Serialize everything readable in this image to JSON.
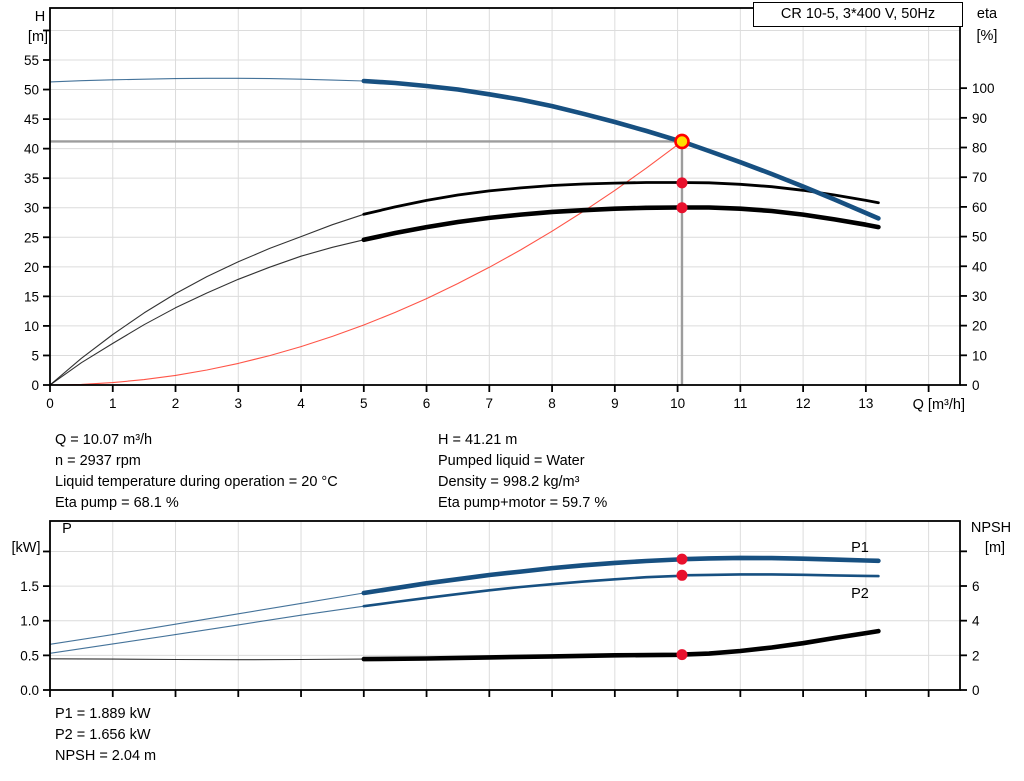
{
  "title_box": "CR 10-5, 3*400 V, 50Hz",
  "colors": {
    "curve_blue": "#175081",
    "curve_black": "#000000",
    "system_red": "#ff2a1a",
    "dot_red": "#e8112d",
    "marker_yellow": "#ffe000",
    "marker_ring": "#ff0000",
    "grid": "#dcdcdc",
    "op_line_gray": "#9d9d9d",
    "frame": "#000000",
    "label_blue": "#1d5ba6"
  },
  "info_top_left": [
    "Q = 10.07 m³/h",
    "n = 2937 rpm",
    "Liquid temperature during operation = 20 °C",
    "Eta pump = 68.1 %"
  ],
  "info_top_right": [
    "H = 41.21 m",
    "Pumped liquid = Water",
    "Density = 998.2 kg/m³",
    "Eta pump+motor = 59.7 %"
  ],
  "info_bottom": [
    "P1 = 1.889 kW",
    "P2 = 1.656 kW",
    "NPSH = 2.04 m"
  ],
  "chart_data": [
    {
      "id": "hq_eta",
      "type": "line",
      "title": "CR 10-5, 3*400 V, 50Hz",
      "x_axis": {
        "label": "Q [m³/h]",
        "range": [
          0,
          14.5
        ],
        "tick_values": [
          0,
          1,
          2,
          3,
          4,
          5,
          6,
          7,
          8,
          9,
          10,
          11,
          12,
          13,
          14
        ],
        "tick_labels": [
          "0",
          "1",
          "2",
          "3",
          "4",
          "5",
          "6",
          "7",
          "8",
          "9",
          "10",
          "11",
          "12",
          "13",
          ""
        ],
        "grid_values": [
          1,
          2,
          3,
          4,
          5,
          6,
          7,
          8,
          9,
          10,
          11,
          12,
          13,
          14
        ],
        "show_tick_labels": true
      },
      "y_left": {
        "label_lines": [
          "H",
          "[m]"
        ],
        "range": [
          0,
          63.8
        ],
        "tick_values": [
          0,
          5,
          10,
          15,
          20,
          25,
          30,
          35,
          40,
          45,
          50,
          55,
          60
        ],
        "tick_labels": [
          "0",
          "5",
          "10",
          "15",
          "20",
          "25",
          "30",
          "35",
          "40",
          "45",
          "50",
          "55",
          ""
        ],
        "grid_values": [
          5,
          10,
          15,
          20,
          25,
          30,
          35,
          40,
          45,
          50,
          55,
          60
        ]
      },
      "y_right": {
        "label_lines": [
          "eta",
          "[%]"
        ],
        "range": [
          0,
          127
        ],
        "tick_values": [
          0,
          10,
          20,
          30,
          40,
          50,
          60,
          70,
          80,
          90,
          100
        ],
        "tick_labels": [
          "0",
          "10",
          "20",
          "30",
          "40",
          "50",
          "60",
          "70",
          "80",
          "90",
          "100"
        ]
      },
      "series": [
        {
          "name": "system-curve",
          "axis": "left",
          "color_key": "system_red",
          "thin_width": 1.1,
          "thick_width": 1.1,
          "thick_from": null,
          "points": [
            [
              0,
              0
            ],
            [
              0.5,
              0.1
            ],
            [
              1,
              0.41
            ],
            [
              1.5,
              0.91
            ],
            [
              2,
              1.63
            ],
            [
              2.5,
              2.54
            ],
            [
              3,
              3.66
            ],
            [
              3.5,
              4.98
            ],
            [
              4,
              6.5
            ],
            [
              4.5,
              8.23
            ],
            [
              5,
              10.16
            ],
            [
              5.5,
              12.29
            ],
            [
              6,
              14.63
            ],
            [
              6.5,
              17.17
            ],
            [
              7,
              19.92
            ],
            [
              7.5,
              22.86
            ],
            [
              8,
              26.02
            ],
            [
              8.5,
              29.37
            ],
            [
              9,
              32.93
            ],
            [
              9.5,
              36.69
            ],
            [
              10,
              40.65
            ],
            [
              10.07,
              41.21
            ]
          ]
        },
        {
          "name": "eta-pump-curve",
          "axis": "right",
          "color_key": "curve_black",
          "thin_width": 1.1,
          "thick_width": 2.8,
          "thick_from": 5,
          "points": [
            [
              0,
              0
            ],
            [
              0.5,
              9
            ],
            [
              1,
              17
            ],
            [
              1.5,
              24.3
            ],
            [
              2,
              30.8
            ],
            [
              2.5,
              36.5
            ],
            [
              3,
              41.5
            ],
            [
              3.5,
              46
            ],
            [
              4,
              50
            ],
            [
              4.5,
              54
            ],
            [
              5,
              57.5
            ],
            [
              5.5,
              60
            ],
            [
              6,
              62.2
            ],
            [
              6.5,
              64
            ],
            [
              7,
              65.4
            ],
            [
              7.5,
              66.4
            ],
            [
              8,
              67.2
            ],
            [
              8.5,
              67.7
            ],
            [
              9,
              68.0
            ],
            [
              9.5,
              68.2
            ],
            [
              10,
              68.2
            ],
            [
              10.5,
              68.1
            ],
            [
              11,
              67.6
            ],
            [
              11.5,
              66.8
            ],
            [
              12,
              65.6
            ],
            [
              12.5,
              64.0
            ],
            [
              13,
              62.2
            ],
            [
              13.2,
              61.4
            ]
          ]
        },
        {
          "name": "eta-pump-motor-curve",
          "axis": "right",
          "color_key": "curve_black",
          "thin_width": 1.1,
          "thick_width": 4.6,
          "thick_from": 5,
          "points": [
            [
              0,
              0
            ],
            [
              0.5,
              7.5
            ],
            [
              1,
              14
            ],
            [
              1.5,
              20.3
            ],
            [
              2,
              26
            ],
            [
              2.5,
              31
            ],
            [
              3,
              35.6
            ],
            [
              3.5,
              39.7
            ],
            [
              4,
              43.4
            ],
            [
              4.5,
              46.4
            ],
            [
              5,
              48.9
            ],
            [
              5.5,
              51.2
            ],
            [
              6,
              53.2
            ],
            [
              6.5,
              54.9
            ],
            [
              7,
              56.3
            ],
            [
              7.5,
              57.4
            ],
            [
              8,
              58.3
            ],
            [
              8.5,
              58.9
            ],
            [
              9,
              59.4
            ],
            [
              9.5,
              59.7
            ],
            [
              10,
              59.8
            ],
            [
              10.5,
              59.8
            ],
            [
              11,
              59.4
            ],
            [
              11.5,
              58.6
            ],
            [
              12,
              57.4
            ],
            [
              12.5,
              55.8
            ],
            [
              13,
              54.0
            ],
            [
              13.2,
              53.2
            ]
          ]
        },
        {
          "name": "pump-curve-h",
          "axis": "left",
          "color_key": "curve_blue",
          "thin_width": 1.1,
          "thick_width": 4.6,
          "thick_from": 5,
          "points": [
            [
              0,
              51.3
            ],
            [
              0.5,
              51.5
            ],
            [
              1,
              51.65
            ],
            [
              1.5,
              51.75
            ],
            [
              2,
              51.85
            ],
            [
              2.5,
              51.9
            ],
            [
              3,
              51.9
            ],
            [
              3.5,
              51.85
            ],
            [
              4,
              51.75
            ],
            [
              4.5,
              51.6
            ],
            [
              5,
              51.45
            ],
            [
              5.5,
              51.1
            ],
            [
              6,
              50.6
            ],
            [
              6.5,
              50.0
            ],
            [
              7,
              49.2
            ],
            [
              7.5,
              48.3
            ],
            [
              8,
              47.2
            ],
            [
              8.5,
              45.9
            ],
            [
              9,
              44.5
            ],
            [
              9.5,
              43.0
            ],
            [
              10,
              41.4
            ],
            [
              10.07,
              41.21
            ],
            [
              10.5,
              39.6
            ],
            [
              11,
              37.7
            ],
            [
              11.5,
              35.7
            ],
            [
              12,
              33.6
            ],
            [
              12.5,
              31.4
            ],
            [
              13,
              29.1
            ],
            [
              13.2,
              28.2
            ]
          ]
        }
      ],
      "operating_point": {
        "q": 10.07,
        "h": 41.21
      },
      "operating_dots": [
        {
          "q": 10.07,
          "value": 68.1,
          "axis": "right"
        },
        {
          "q": 10.07,
          "value": 59.7,
          "axis": "right"
        }
      ],
      "series_labels": []
    },
    {
      "id": "power_npsh",
      "type": "line",
      "title": "",
      "x_axis": {
        "label": "",
        "range": [
          0,
          14.5
        ],
        "tick_values": [
          0,
          1,
          2,
          3,
          4,
          5,
          6,
          7,
          8,
          9,
          10,
          11,
          12,
          13,
          14
        ],
        "tick_labels": [
          "",
          "",
          "",
          "",
          "",
          "",
          "",
          "",
          "",
          "",
          "",
          "",
          "",
          "",
          ""
        ],
        "grid_values": [
          1,
          2,
          3,
          4,
          5,
          6,
          7,
          8,
          9,
          10,
          11,
          12,
          13,
          14
        ],
        "show_tick_labels": false
      },
      "y_left": {
        "label_lines": [
          "P",
          "[kW]"
        ],
        "range": [
          0,
          2.44
        ],
        "tick_values": [
          0,
          0.5,
          1.0,
          1.5,
          2.0
        ],
        "tick_labels": [
          "0.0",
          "0.5",
          "1.0",
          "1.5",
          ""
        ],
        "grid_values": [
          0.5,
          1.0,
          1.5,
          2.0
        ]
      },
      "y_right": {
        "label_lines": [
          "NPSH",
          "[m]"
        ],
        "range": [
          0,
          9.75
        ],
        "tick_values": [
          0,
          2,
          4,
          6,
          8
        ],
        "tick_labels": [
          "0",
          "2",
          "4",
          "6",
          ""
        ]
      },
      "series": [
        {
          "name": "npsh-curve",
          "axis": "right",
          "color_key": "curve_black",
          "thin_width": 1.1,
          "thick_width": 4.6,
          "thick_from": 5,
          "points": [
            [
              0,
              1.8
            ],
            [
              1,
              1.78
            ],
            [
              2,
              1.76
            ],
            [
              3,
              1.75
            ],
            [
              4,
              1.76
            ],
            [
              5,
              1.78
            ],
            [
              6,
              1.82
            ],
            [
              7,
              1.88
            ],
            [
              8,
              1.94
            ],
            [
              9,
              2.0
            ],
            [
              10,
              2.03
            ],
            [
              10.07,
              2.04
            ],
            [
              10.5,
              2.1
            ],
            [
              11,
              2.25
            ],
            [
              11.5,
              2.45
            ],
            [
              12,
              2.7
            ],
            [
              12.5,
              3.0
            ],
            [
              13,
              3.28
            ],
            [
              13.2,
              3.4
            ]
          ]
        },
        {
          "name": "p2-curve",
          "axis": "left",
          "color_key": "curve_blue",
          "thin_width": 1.1,
          "thick_width": 2.6,
          "thick_from": 5,
          "points": [
            [
              0,
              0.53
            ],
            [
              1,
              0.665
            ],
            [
              2,
              0.8
            ],
            [
              3,
              0.94
            ],
            [
              4,
              1.08
            ],
            [
              5,
              1.21
            ],
            [
              5.5,
              1.27
            ],
            [
              6,
              1.33
            ],
            [
              6.5,
              1.385
            ],
            [
              7,
              1.44
            ],
            [
              7.5,
              1.487
            ],
            [
              8,
              1.528
            ],
            [
              8.5,
              1.565
            ],
            [
              9,
              1.598
            ],
            [
              9.5,
              1.628
            ],
            [
              10,
              1.648
            ],
            [
              10.07,
              1.656
            ],
            [
              10.5,
              1.662
            ],
            [
              11,
              1.669
            ],
            [
              11.5,
              1.669
            ],
            [
              12,
              1.663
            ],
            [
              12.5,
              1.655
            ],
            [
              13,
              1.648
            ],
            [
              13.2,
              1.645
            ]
          ]
        },
        {
          "name": "p1-curve",
          "axis": "left",
          "color_key": "curve_blue",
          "thin_width": 1.1,
          "thick_width": 4.6,
          "thick_from": 5,
          "points": [
            [
              0,
              0.66
            ],
            [
              1,
              0.8
            ],
            [
              2,
              0.95
            ],
            [
              3,
              1.1
            ],
            [
              4,
              1.25
            ],
            [
              5,
              1.4
            ],
            [
              5.5,
              1.47
            ],
            [
              6,
              1.54
            ],
            [
              6.5,
              1.6
            ],
            [
              7,
              1.66
            ],
            [
              7.5,
              1.71
            ],
            [
              8,
              1.76
            ],
            [
              8.5,
              1.8
            ],
            [
              9,
              1.835
            ],
            [
              9.5,
              1.862
            ],
            [
              10,
              1.884
            ],
            [
              10.07,
              1.889
            ],
            [
              10.5,
              1.9
            ],
            [
              11,
              1.907
            ],
            [
              11.5,
              1.905
            ],
            [
              12,
              1.895
            ],
            [
              12.5,
              1.882
            ],
            [
              13,
              1.87
            ],
            [
              13.2,
              1.865
            ]
          ]
        }
      ],
      "operating_point": null,
      "operating_dots": [
        {
          "q": 10.07,
          "value": 1.889,
          "axis": "left"
        },
        {
          "q": 10.07,
          "value": 1.656,
          "axis": "left"
        },
        {
          "q": 10.07,
          "value": 2.04,
          "axis": "right"
        }
      ],
      "series_labels": [
        "P1",
        "P2"
      ]
    }
  ]
}
